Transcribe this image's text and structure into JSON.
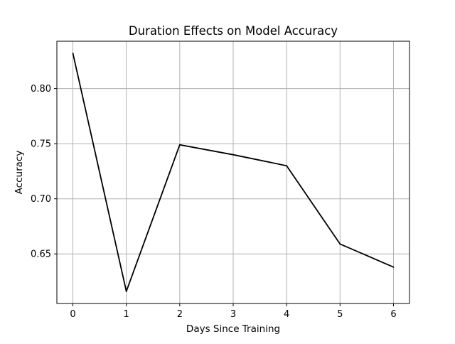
{
  "chart_data": {
    "type": "line",
    "title": "Duration Effects on Model Accuracy",
    "xlabel": "Days Since Training",
    "ylabel": "Accuracy",
    "x": [
      0,
      1,
      2,
      3,
      4,
      5,
      6
    ],
    "series": [
      {
        "values": [
          0.832,
          0.616,
          0.749,
          0.74,
          0.73,
          0.659,
          0.638
        ],
        "color": "#000000"
      }
    ],
    "xlim": [
      -0.3,
      6.3
    ],
    "ylim": [
      0.605,
      0.843
    ],
    "xticks": [
      0,
      1,
      2,
      3,
      4,
      5,
      6
    ],
    "xtick_labels": [
      "0",
      "1",
      "2",
      "3",
      "4",
      "5",
      "6"
    ],
    "yticks": [
      0.65,
      0.7,
      0.75,
      0.8
    ],
    "ytick_labels": [
      "0.65",
      "0.70",
      "0.75",
      "0.80"
    ],
    "grid": true,
    "grid_color": "#b0b0b0",
    "legend": "none"
  }
}
